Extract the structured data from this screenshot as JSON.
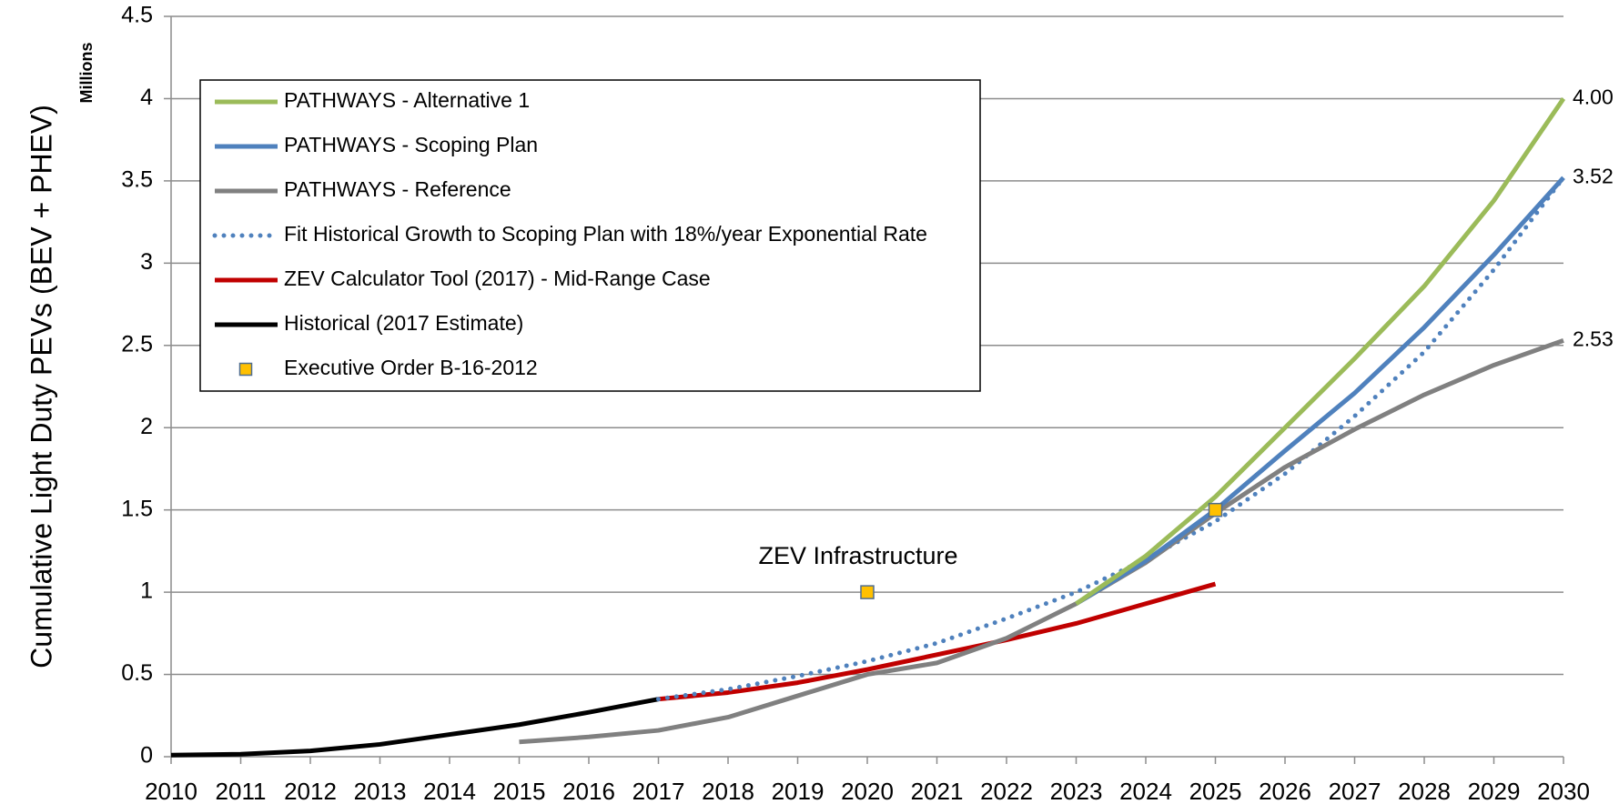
{
  "chart_data": {
    "type": "line",
    "y_axis_label": "Cumulative Light Duty PEVs (BEV + PHEV)",
    "y_unit_label": "Millions",
    "annotation": "ZEV Infrastructure",
    "x": [
      2010,
      2011,
      2012,
      2013,
      2014,
      2015,
      2016,
      2017,
      2018,
      2019,
      2020,
      2021,
      2022,
      2023,
      2024,
      2025,
      2026,
      2027,
      2028,
      2029,
      2030
    ],
    "xlim": [
      2010,
      2030
    ],
    "xticks": [
      2010,
      2011,
      2012,
      2013,
      2014,
      2015,
      2016,
      2017,
      2018,
      2019,
      2020,
      2021,
      2022,
      2023,
      2024,
      2025,
      2026,
      2027,
      2028,
      2029,
      2030
    ],
    "ylim": [
      0,
      4.5
    ],
    "yticks": [
      0,
      0.5,
      1,
      1.5,
      2,
      2.5,
      3,
      3.5,
      4,
      4.5
    ],
    "grid": true,
    "legend": "top-left",
    "series": [
      {
        "name": "PATHWAYS - Alternative 1",
        "color": "#9bbb59",
        "values": [
          null,
          null,
          null,
          null,
          null,
          null,
          null,
          null,
          null,
          null,
          null,
          null,
          null,
          0.93,
          1.22,
          1.58,
          2.0,
          2.42,
          2.86,
          3.38,
          4.0
        ],
        "value_labels": [
          null,
          null,
          null,
          null,
          null,
          null,
          null,
          null,
          null,
          null,
          null,
          null,
          null,
          null,
          null,
          null,
          null,
          null,
          null,
          null,
          "4.00"
        ]
      },
      {
        "name": "PATHWAYS - Scoping Plan",
        "color": "#4f81bd",
        "values": [
          null,
          null,
          null,
          null,
          null,
          null,
          null,
          null,
          null,
          null,
          null,
          null,
          null,
          0.93,
          1.19,
          1.5,
          1.86,
          2.21,
          2.61,
          3.05,
          3.52
        ],
        "value_labels": [
          null,
          null,
          null,
          null,
          null,
          null,
          null,
          null,
          null,
          null,
          null,
          null,
          null,
          null,
          null,
          null,
          null,
          null,
          null,
          null,
          "3.52"
        ]
      },
      {
        "name": "PATHWAYS - Reference",
        "color": "#808080",
        "values": [
          null,
          null,
          null,
          null,
          null,
          0.09,
          0.12,
          0.16,
          0.24,
          0.37,
          0.5,
          0.57,
          0.72,
          0.93,
          1.18,
          1.48,
          1.76,
          1.99,
          2.2,
          2.38,
          2.53
        ],
        "value_labels": [
          null,
          null,
          null,
          null,
          null,
          null,
          null,
          null,
          null,
          null,
          null,
          null,
          null,
          null,
          null,
          null,
          null,
          null,
          null,
          null,
          "2.53"
        ]
      },
      {
        "name": "Fit Historical Growth to Scoping Plan with 18%/year Exponential Rate",
        "color": "#4f81bd",
        "dash": "dotted",
        "values": [
          null,
          null,
          null,
          null,
          null,
          null,
          null,
          0.35,
          0.41,
          0.49,
          0.58,
          0.69,
          0.84,
          1.0,
          1.2,
          1.43,
          1.72,
          2.07,
          2.46,
          2.96,
          3.52
        ]
      },
      {
        "name": "ZEV Calculator Tool (2017) - Mid-Range Case",
        "color": "#c00000",
        "values": [
          null,
          null,
          null,
          null,
          null,
          null,
          null,
          0.35,
          0.39,
          0.45,
          0.53,
          0.62,
          0.71,
          0.81,
          0.93,
          1.05,
          null,
          null,
          null,
          null,
          null
        ]
      },
      {
        "name": "Historical (2017 Estimate)",
        "color": "#000000",
        "values": [
          0.01,
          0.015,
          0.035,
          0.075,
          0.135,
          0.195,
          0.27,
          0.35,
          null,
          null,
          null,
          null,
          null,
          null,
          null,
          null,
          null,
          null,
          null,
          null,
          null
        ]
      },
      {
        "name": "Executive Order B-16-2012",
        "color": "#ffc000",
        "marker": "square",
        "values": [
          null,
          null,
          null,
          null,
          null,
          null,
          null,
          null,
          null,
          null,
          1.0,
          null,
          null,
          null,
          null,
          1.5,
          null,
          null,
          null,
          null,
          null
        ]
      }
    ]
  }
}
